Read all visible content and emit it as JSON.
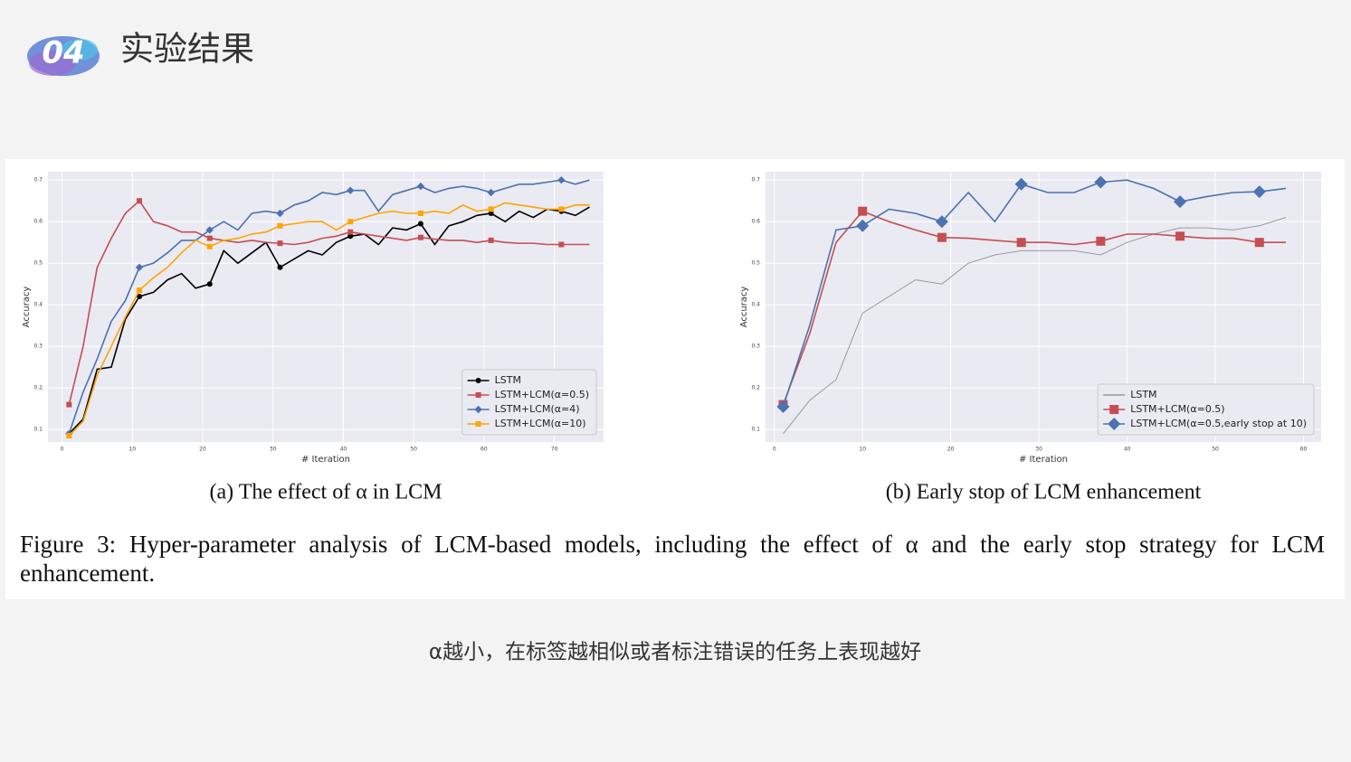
{
  "header": {
    "number": "04",
    "title": "实验结果"
  },
  "chart_data": [
    {
      "type": "line",
      "xlabel": "# Iteration",
      "ylabel": "Accuracy",
      "caption": "(a) The effect of α in LCM",
      "x": [
        1,
        3,
        5,
        7,
        9,
        11,
        13,
        15,
        17,
        19,
        21,
        23,
        25,
        27,
        29,
        31,
        33,
        35,
        37,
        39,
        41,
        43,
        45,
        47,
        49,
        51,
        53,
        55,
        57,
        59,
        61,
        63,
        65,
        67,
        69,
        71,
        73,
        75
      ],
      "xlim": [
        -2,
        77
      ],
      "xticks": [
        0,
        10,
        20,
        30,
        40,
        50,
        60,
        70
      ],
      "ylim": [
        0.07,
        0.72
      ],
      "yticks": [
        0.1,
        0.2,
        0.3,
        0.4,
        0.5,
        0.6,
        0.7
      ],
      "grid": true,
      "legend": "lower right",
      "series": [
        {
          "name": "LSTM",
          "color": "#000000",
          "marker": "circle",
          "markevery": 5,
          "values": [
            0.09,
            0.125,
            0.245,
            0.25,
            0.365,
            0.42,
            0.43,
            0.46,
            0.475,
            0.44,
            0.45,
            0.53,
            0.5,
            0.525,
            0.55,
            0.49,
            0.51,
            0.53,
            0.52,
            0.55,
            0.565,
            0.57,
            0.545,
            0.585,
            0.58,
            0.595,
            0.545,
            0.59,
            0.6,
            0.615,
            0.62,
            0.6,
            0.625,
            0.61,
            0.63,
            0.625,
            0.615,
            0.635
          ]
        },
        {
          "name": "LSTM+LCM(α=0.5)",
          "color": "#c44e52",
          "marker": "square",
          "markevery": 5,
          "values": [
            0.16,
            0.3,
            0.49,
            0.56,
            0.62,
            0.65,
            0.6,
            0.59,
            0.575,
            0.575,
            0.56,
            0.555,
            0.55,
            0.555,
            0.55,
            0.548,
            0.545,
            0.55,
            0.56,
            0.565,
            0.575,
            0.57,
            0.565,
            0.56,
            0.555,
            0.562,
            0.558,
            0.555,
            0.555,
            0.55,
            0.555,
            0.55,
            0.548,
            0.548,
            0.545,
            0.545,
            0.545,
            0.545
          ]
        },
        {
          "name": "LSTM+LCM(α=4)",
          "color": "#4c72b0",
          "marker": "diamond",
          "markevery": 5,
          "values": [
            0.09,
            0.19,
            0.27,
            0.36,
            0.41,
            0.49,
            0.5,
            0.525,
            0.555,
            0.555,
            0.58,
            0.6,
            0.58,
            0.62,
            0.625,
            0.62,
            0.64,
            0.65,
            0.67,
            0.665,
            0.675,
            0.675,
            0.625,
            0.665,
            0.675,
            0.685,
            0.67,
            0.68,
            0.685,
            0.68,
            0.67,
            0.68,
            0.69,
            0.69,
            0.695,
            0.7,
            0.69,
            0.7
          ]
        },
        {
          "name": "LSTM+LCM(α=10)",
          "color": "#ffa500",
          "marker": "square",
          "markevery": 5,
          "values": [
            0.085,
            0.12,
            0.23,
            0.3,
            0.37,
            0.435,
            0.465,
            0.49,
            0.525,
            0.555,
            0.54,
            0.555,
            0.56,
            0.57,
            0.575,
            0.59,
            0.595,
            0.6,
            0.6,
            0.58,
            0.6,
            0.61,
            0.62,
            0.625,
            0.62,
            0.62,
            0.625,
            0.62,
            0.64,
            0.625,
            0.63,
            0.645,
            0.64,
            0.635,
            0.63,
            0.63,
            0.64,
            0.64
          ]
        }
      ]
    },
    {
      "type": "line",
      "xlabel": "# Iteration",
      "ylabel": "Accuracy",
      "caption": "(b) Early stop of LCM enhancement",
      "x": [
        1,
        4,
        7,
        10,
        13,
        16,
        19,
        22,
        25,
        28,
        31,
        34,
        37,
        40,
        43,
        46,
        49,
        52,
        55,
        58
      ],
      "xlim": [
        -1,
        62
      ],
      "xticks": [
        0,
        10,
        20,
        30,
        40,
        50,
        60
      ],
      "ylim": [
        0.07,
        0.72
      ],
      "yticks": [
        0.1,
        0.2,
        0.3,
        0.4,
        0.5,
        0.6,
        0.7
      ],
      "grid": true,
      "legend": "lower right",
      "series": [
        {
          "name": "LSTM",
          "color": "#9a9a9a",
          "marker": "none",
          "markevery": 3,
          "values": [
            0.09,
            0.17,
            0.22,
            0.38,
            0.42,
            0.46,
            0.45,
            0.5,
            0.52,
            0.53,
            0.53,
            0.53,
            0.52,
            0.55,
            0.57,
            0.585,
            0.585,
            0.58,
            0.59,
            0.61
          ]
        },
        {
          "name": "LSTM+LCM(α=0.5)",
          "color": "#c44e52",
          "marker": "square",
          "markevery": 3,
          "values": [
            0.16,
            0.33,
            0.55,
            0.625,
            0.6,
            0.58,
            0.562,
            0.56,
            0.555,
            0.55,
            0.55,
            0.545,
            0.553,
            0.57,
            0.57,
            0.565,
            0.56,
            0.56,
            0.55,
            0.55
          ]
        },
        {
          "name": "LSTM+LCM(α=0.5,early stop at 10)",
          "color": "#4c72b0",
          "marker": "diamond",
          "markevery": 3,
          "values": [
            0.155,
            0.35,
            0.58,
            0.59,
            0.63,
            0.62,
            0.6,
            0.67,
            0.6,
            0.69,
            0.67,
            0.67,
            0.695,
            0.7,
            0.68,
            0.648,
            0.66,
            0.67,
            0.672,
            0.68
          ]
        }
      ]
    }
  ],
  "figure_caption": "Figure 3: Hyper-parameter analysis of LCM-based models, including the effect of α and the early stop strategy for LCM enhancement.",
  "note": "α越小，在标签越相似或者标注错误的任务上表现越好"
}
